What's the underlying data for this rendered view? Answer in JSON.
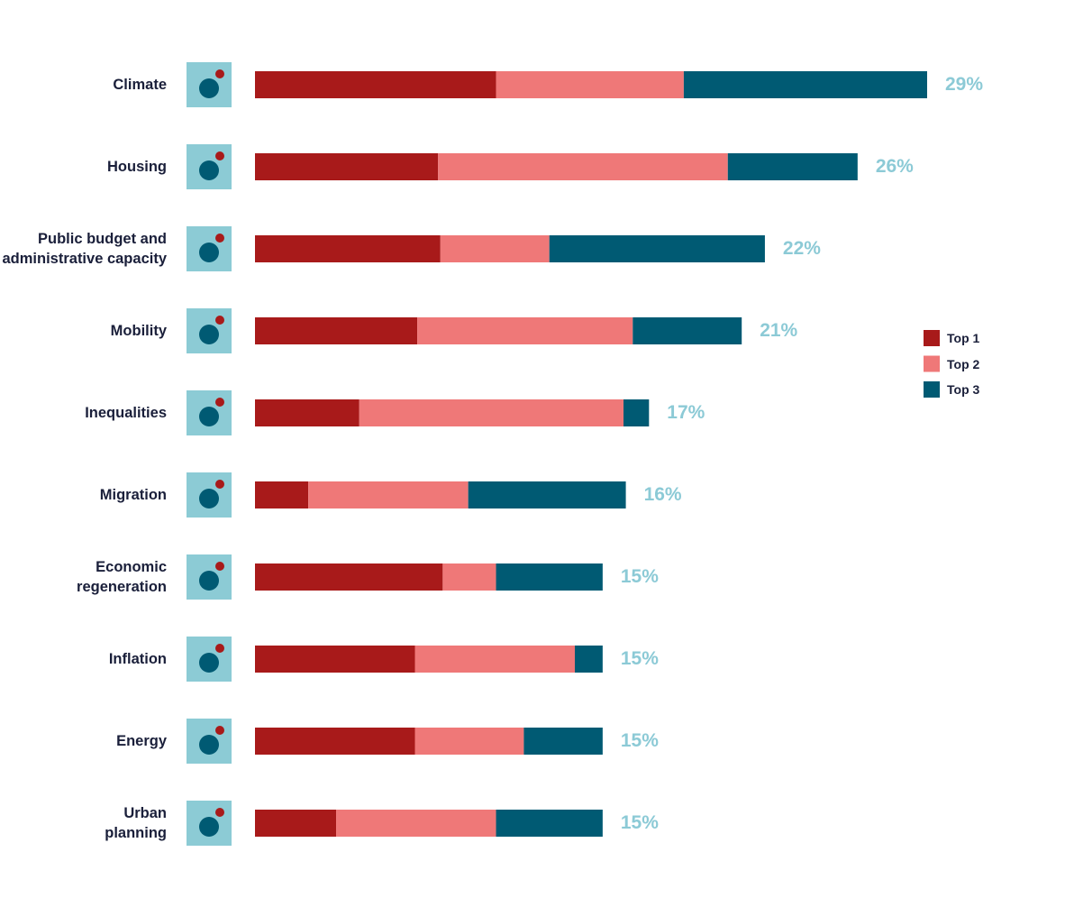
{
  "chart_data": {
    "type": "stacked-bar",
    "orientation": "horizontal",
    "categories": [
      "Climate",
      "Housing",
      "Public budget and\nadministrative capacity",
      "Mobility",
      "Inequalities",
      "Migration",
      "Economic\nregeneration",
      "Inflation",
      "Energy",
      "Urban\nplanning"
    ],
    "series": [
      {
        "name": "Top 1",
        "color": "#a81a1a",
        "values": [
          10.4,
          7.9,
          8.0,
          7.0,
          4.5,
          2.3,
          8.1,
          6.9,
          6.9,
          3.5
        ]
      },
      {
        "name": "Top 2",
        "color": "#ef7878",
        "values": [
          8.1,
          12.5,
          4.7,
          9.3,
          11.4,
          6.9,
          2.3,
          6.9,
          4.7,
          6.9
        ]
      },
      {
        "name": "Top 3",
        "color": "#005a73",
        "values": [
          10.5,
          5.6,
          9.3,
          4.7,
          1.1,
          6.8,
          4.6,
          1.2,
          3.4,
          4.6
        ]
      }
    ],
    "values": [
      29,
      26,
      22,
      21,
      17,
      16,
      15,
      15,
      15,
      15
    ],
    "value_labels": [
      "29%",
      "26%",
      "22%",
      "21%",
      "17%",
      "16%",
      "15%",
      "15%",
      "15%",
      "15%"
    ],
    "value_label_color": "#8ccad6",
    "legend": "right"
  }
}
